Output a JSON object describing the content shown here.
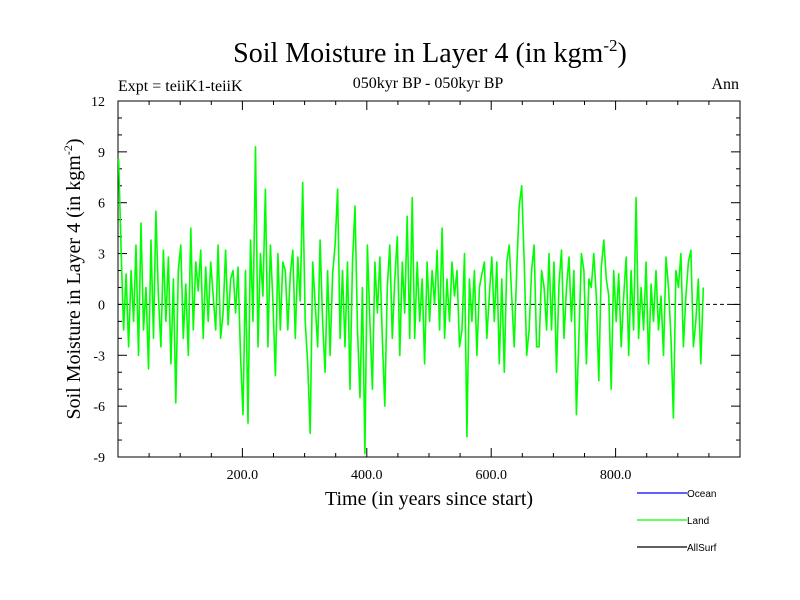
{
  "chart_data": {
    "type": "line",
    "title": "Soil Moisture in Layer 4 (in kgm",
    "title_sup": "-2",
    "title_suffix": ")",
    "subtitle": "050kyr BP - 050kyr BP",
    "expt_label": "Expt = teiiK1-teiiK",
    "season_label": "Ann",
    "xlabel": "Time (in years since start)",
    "ylabel": "Soil Moisture in Layer 4 (in kgm",
    "ylabel_sup": "-2",
    "ylabel_suffix": ")",
    "xlim": [
      0,
      1000
    ],
    "ylim": [
      -9,
      12
    ],
    "x_ticks": [
      200,
      400,
      600,
      800
    ],
    "x_tick_labels": [
      "200.0",
      "400.0",
      "600.0",
      "800.0"
    ],
    "y_ticks": [
      -9,
      -6,
      -3,
      0,
      3,
      6,
      9,
      12
    ],
    "y_tick_labels": [
      "-9",
      "-6",
      "-3",
      "0",
      "3",
      "6",
      "9",
      "12"
    ],
    "zero_line": true,
    "legend": [
      {
        "name": "Ocean",
        "color": "#0000ff"
      },
      {
        "name": "Land",
        "color": "#00ff00"
      },
      {
        "name": "AllSurf",
        "color": "#000000"
      }
    ],
    "series": [
      {
        "name": "Land",
        "color": "#00ff00",
        "x_start": 1,
        "x_step": 4,
        "values": [
          8.6,
          3.2,
          -1.5,
          1.8,
          -2.5,
          2.0,
          -1.0,
          3.5,
          -3.0,
          4.8,
          -1.5,
          1.0,
          -3.8,
          3.8,
          -2.0,
          5.5,
          0.5,
          -2.5,
          3.2,
          -1.0,
          2.8,
          -3.5,
          1.5,
          -5.8,
          2.0,
          3.5,
          -2.0,
          1.2,
          -3.0,
          4.5,
          -1.5,
          2.5,
          0.8,
          3.2,
          -2.0,
          2.2,
          -1.0,
          2.5,
          0.5,
          -1.5,
          3.5,
          -2.0,
          -0.5,
          3.2,
          -1.2,
          1.5,
          2.0,
          -0.5,
          2.2,
          -3.0,
          -6.5,
          2.0,
          -7.0,
          3.8,
          -1.0,
          9.3,
          -2.5,
          3.0,
          0.5,
          6.8,
          -2.5,
          3.5,
          0.2,
          -4.2,
          3.0,
          -1.5,
          2.5,
          2.0,
          -1.5,
          1.8,
          3.2,
          -2.0,
          2.8,
          0.2,
          7.2,
          -1.0,
          -3.5,
          -7.6,
          2.5,
          0.0,
          -2.5,
          3.8,
          -1.0,
          -4.0,
          2.0,
          -3.0,
          1.8,
          3.5,
          6.8,
          -2.0,
          2.0,
          -2.5,
          2.5,
          -5.0,
          2.5,
          5.8,
          -1.5,
          -5.5,
          1.0,
          -8.8,
          3.5,
          -1.0,
          -5.0,
          2.5,
          -0.5,
          2.8,
          -2.0,
          -6.0,
          1.0,
          3.5,
          -2.0,
          1.5,
          4.0,
          -3.0,
          2.5,
          -0.5,
          5.2,
          -2.0,
          6.3,
          -2.0,
          2.5,
          -1.0,
          1.5,
          -3.5,
          2.5,
          -1.0,
          2.0,
          0.0,
          3.2,
          -1.5,
          4.5,
          -2.0,
          1.5,
          -1.0,
          2.5,
          0.5,
          2.0,
          -2.5,
          -1.5,
          3.0,
          -7.8,
          1.5,
          -1.0,
          2.0,
          -3.0,
          1.0,
          1.8,
          2.5,
          -2.0,
          0.5,
          2.8,
          -1.0,
          2.5,
          -3.5,
          1.5,
          -4.0,
          2.5,
          3.5,
          0.5,
          -2.5,
          2.0,
          5.8,
          7.0,
          2.5,
          -3.0,
          -1.5,
          2.0,
          3.5,
          -2.5,
          -2.5,
          2.0,
          1.0,
          -1.5,
          3.0,
          -1.5,
          2.5,
          -4.0,
          1.2,
          3.2,
          -2.0,
          1.0,
          2.8,
          -1.0,
          2.0,
          -6.5,
          -2.0,
          3.0,
          2.0,
          -3.5,
          1.5,
          1.0,
          3.0,
          0.5,
          -4.5,
          2.2,
          3.8,
          1.5,
          0.5,
          -5.0,
          2.0,
          -1.0,
          1.8,
          -2.5,
          0.5,
          2.8,
          -3.0,
          2.0,
          -1.5,
          6.3,
          -2.0,
          1.0,
          -1.5,
          2.5,
          -3.5,
          1.2,
          -1.0,
          2.0,
          -1.5,
          0.5,
          -3.0,
          2.8,
          1.0,
          -2.0,
          -6.7,
          2.0,
          1.0,
          3.0,
          -2.5,
          0.5,
          2.5,
          3.2,
          -2.5,
          -1.0,
          1.5,
          -3.5,
          1.0
        ]
      }
    ]
  }
}
